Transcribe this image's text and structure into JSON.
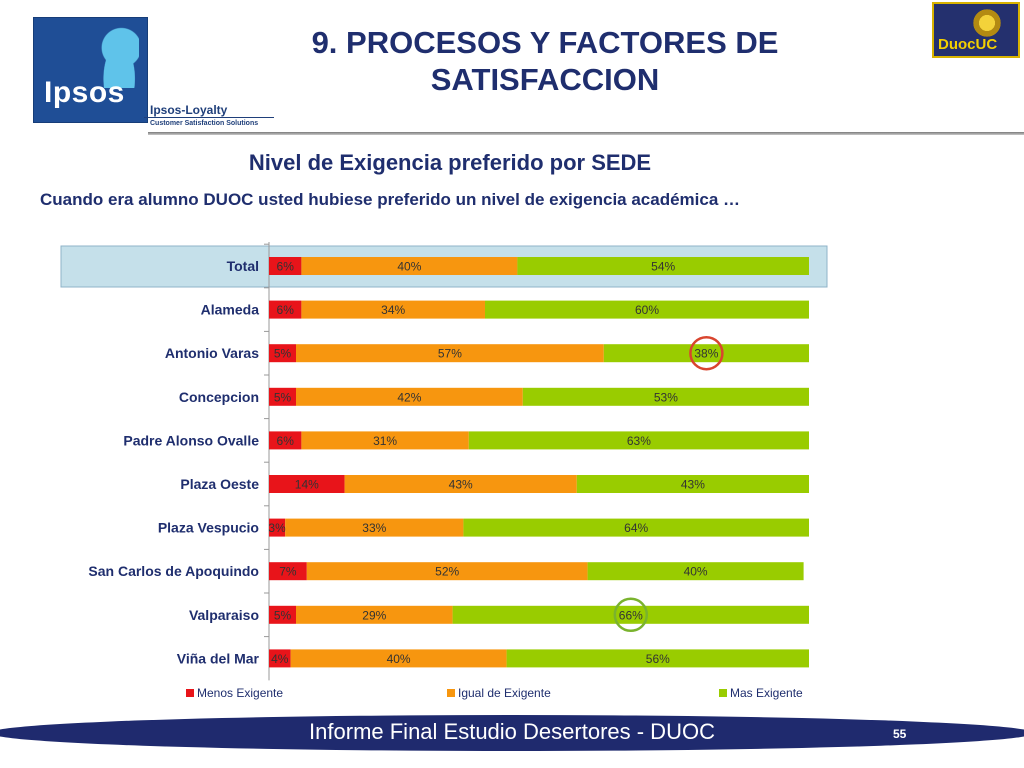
{
  "header": {
    "title": "9. PROCESOS Y FACTORES DE SATISFACCION",
    "subtitle": "Nivel de Exigencia preferido por SEDE",
    "question": "Cuando era alumno DUOC usted hubiese preferido un nivel de exigencia académica …"
  },
  "logos": {
    "ipsos": "Ipsos",
    "loyalty": "Ipsos-Loyalty",
    "loyalty_tagline": "Customer Satisfaction Solutions",
    "duoc": "DuocUC"
  },
  "footer": {
    "text": "Informe Final Estudio Desertores - DUOC",
    "page_number": "55"
  },
  "colors": {
    "title": "#1f2e6e",
    "menos": "#e8141a",
    "igual": "#f7960f",
    "mas": "#99cc00",
    "highlight_row": "#c5e0ea",
    "circle_red": "#d9452f",
    "circle_green": "#7ab32e",
    "footer": "#1f2a6e"
  },
  "chart_data": {
    "type": "bar",
    "orientation": "horizontal",
    "stacked": true,
    "categories": [
      "Total",
      "Alameda",
      "Antonio Varas",
      "Concepcion",
      "Padre Alonso Ovalle",
      "Plaza Oeste",
      "Plaza Vespucio",
      "San Carlos de Apoquindo",
      "Valparaiso",
      "Viña del Mar"
    ],
    "series": [
      {
        "name": "Menos Exigente",
        "color": "#e8141a",
        "values": [
          6,
          6,
          5,
          5,
          6,
          14,
          3,
          7,
          5,
          4
        ]
      },
      {
        "name": "Igual de Exigente",
        "color": "#f7960f",
        "values": [
          40,
          34,
          57,
          42,
          31,
          43,
          33,
          52,
          29,
          40
        ]
      },
      {
        "name": "Mas Exigente",
        "color": "#99cc00",
        "values": [
          54,
          60,
          38,
          53,
          63,
          43,
          64,
          40,
          66,
          56
        ]
      }
    ],
    "unit": "%",
    "xlim": [
      0,
      100
    ],
    "legend_position": "bottom",
    "highlighted_category": "Total",
    "circled_labels": [
      {
        "category": "Antonio Varas",
        "series": "Mas Exigente",
        "color": "#d9452f"
      },
      {
        "category": "Valparaiso",
        "series": "Mas Exigente",
        "color": "#7ab32e"
      }
    ]
  }
}
